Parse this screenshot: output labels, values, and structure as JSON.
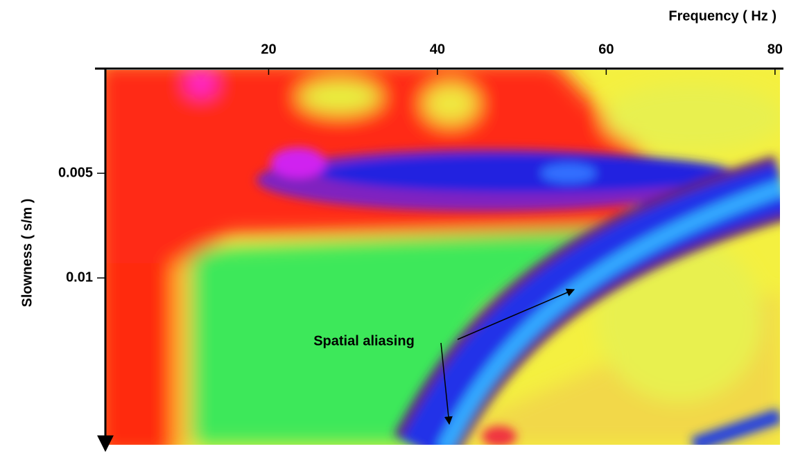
{
  "chart_data": {
    "type": "heatmap",
    "x_label": "Frequency ( Hz )",
    "y_label": "Slowness ( s/m )",
    "xlim": [
      0,
      81
    ],
    "ylim": [
      0,
      0.018
    ],
    "xticks": [
      20,
      40,
      60,
      80
    ],
    "yticks": [
      0.005,
      0.01
    ],
    "x_axis_position": "top",
    "y_axis_inverted": true,
    "annotations": [
      {
        "text": "Spatial aliasing"
      }
    ]
  }
}
